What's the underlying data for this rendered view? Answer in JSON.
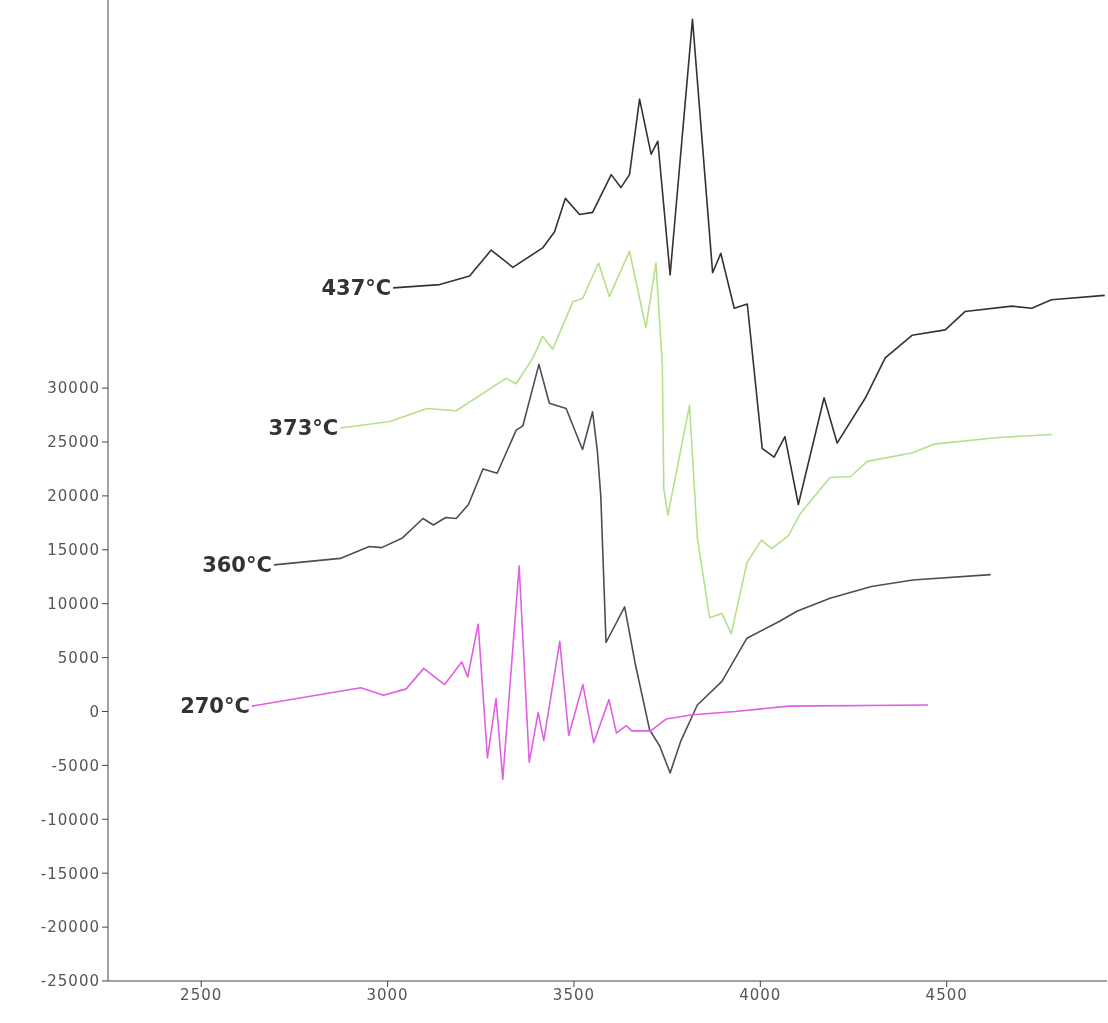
{
  "chart_data": {
    "type": "line",
    "xlim": [
      2250,
      4930
    ],
    "xticks": [
      2500,
      3000,
      3500,
      4000,
      4500
    ],
    "ylim": [
      -25000,
      66000
    ],
    "yticks": [
      -25000,
      -20000,
      -15000,
      -10000,
      -5000,
      0,
      5000,
      10000,
      15000,
      20000,
      25000,
      30000
    ],
    "grid": false,
    "legend": false,
    "marker": "none",
    "line_style": "solid",
    "series": [
      {
        "name": "437°C",
        "color": "#333333",
        "x": [
          3015,
          3140,
          3220,
          3278,
          3336,
          3416,
          3448,
          3477,
          3515,
          3550,
          3600,
          3626,
          3649,
          3676,
          3707,
          3725,
          3758,
          3818,
          3872,
          3894,
          3930,
          3965,
          4005,
          4037,
          4066,
          4102,
          4171,
          4206,
          4282,
          4335,
          4407,
          4496,
          4549,
          4675,
          4728,
          4781,
          4924
        ],
        "values": [
          39300,
          39600,
          40400,
          42800,
          41200,
          43000,
          44500,
          47600,
          46100,
          46300,
          49800,
          48600,
          49800,
          56800,
          51700,
          52900,
          40500,
          64200,
          40700,
          42500,
          37400,
          37800,
          24400,
          23600,
          25500,
          19200,
          29100,
          24900,
          29100,
          32800,
          34900,
          35400,
          37100,
          37600,
          37400,
          38200,
          38600
        ]
      },
      {
        "name": "373°C",
        "color": "#b5e08a",
        "x": [
          2873,
          3006,
          3106,
          3184,
          3318,
          3345,
          3390,
          3416,
          3443,
          3497,
          3523,
          3566,
          3595,
          3649,
          3693,
          3720,
          3737,
          3741,
          3752,
          3810,
          3831,
          3864,
          3897,
          3922,
          3964,
          4003,
          4030,
          4075,
          4108,
          4187,
          4242,
          4287,
          4409,
          4465,
          4632,
          4782
        ],
        "values": [
          26300,
          26900,
          28100,
          27900,
          30900,
          30400,
          32800,
          34800,
          33600,
          38000,
          38300,
          41600,
          38500,
          42700,
          35600,
          41600,
          32200,
          20700,
          18200,
          28400,
          16100,
          8700,
          9100,
          7200,
          13800,
          15900,
          15100,
          16300,
          18400,
          21700,
          21800,
          23200,
          24000,
          24800,
          25400,
          25700
        ]
      },
      {
        "name": "360°C",
        "color": "#4d4d5a",
        "x": [
          2695,
          2873,
          2951,
          2984,
          3040,
          3095,
          3123,
          3156,
          3184,
          3217,
          3256,
          3294,
          3345,
          3363,
          3406,
          3434,
          3479,
          3523,
          3550,
          3563,
          3572,
          3586,
          3636,
          3664,
          3703,
          3730,
          3758,
          3786,
          3831,
          3897,
          3964,
          4053,
          4098,
          4187,
          4298,
          4409,
          4618
        ],
        "values": [
          13600,
          14200,
          15300,
          15200,
          16100,
          17900,
          17300,
          18000,
          17900,
          19200,
          22500,
          22100,
          26100,
          26500,
          32200,
          28600,
          28100,
          24300,
          27800,
          24100,
          20000,
          6400,
          9700,
          4500,
          -1700,
          -3200,
          -5700,
          -2800,
          600,
          2800,
          6800,
          8400,
          9300,
          10500,
          11600,
          12200,
          12700
        ]
      },
      {
        "name": "270°C",
        "color": "#e060e0",
        "x": [
          2636,
          2928,
          2989,
          3050,
          3097,
          3153,
          3199,
          3215,
          3243,
          3268,
          3291,
          3309,
          3353,
          3380,
          3404,
          3419,
          3462,
          3486,
          3524,
          3553,
          3594,
          3614,
          3640,
          3655,
          3706,
          3747,
          3819,
          3932,
          4076,
          4450
        ],
        "values": [
          500,
          2200,
          1500,
          2100,
          4000,
          2500,
          4600,
          3200,
          8100,
          -4300,
          1200,
          -6300,
          13500,
          -4700,
          -100,
          -2700,
          6500,
          -2200,
          2500,
          -2900,
          1100,
          -2000,
          -1300,
          -1800,
          -1800,
          -700,
          -300,
          0,
          500,
          600
        ]
      }
    ]
  }
}
